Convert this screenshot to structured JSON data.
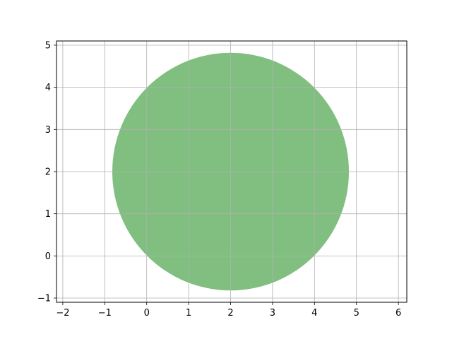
{
  "chart_data": {
    "type": "scatter",
    "title": "",
    "xlabel": "",
    "ylabel": "",
    "xlim": [
      -2.15,
      6.2
    ],
    "ylim": [
      -1.1,
      5.1
    ],
    "grid": true,
    "x_ticks": [
      -2,
      -1,
      0,
      1,
      2,
      3,
      4,
      5,
      6
    ],
    "y_ticks": [
      -1,
      0,
      1,
      2,
      3,
      4,
      5
    ],
    "x_tick_labels": [
      "−2",
      "−1",
      "0",
      "1",
      "2",
      "3",
      "4",
      "5",
      "6"
    ],
    "y_tick_labels": [
      "−1",
      "0",
      "1",
      "2",
      "3",
      "4",
      "5"
    ],
    "shapes": [
      {
        "kind": "circle",
        "center": [
          2,
          2
        ],
        "radius": 2.82,
        "color": "#80bf80"
      }
    ]
  }
}
